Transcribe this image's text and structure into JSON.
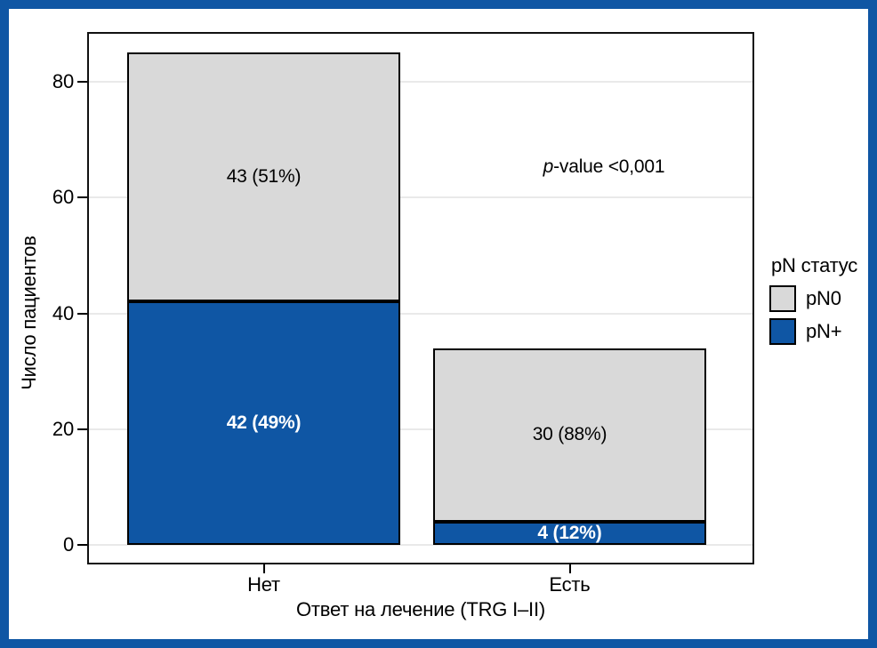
{
  "colors": {
    "pn0": "#d9d9d9",
    "pn_plus": "#0f56a4",
    "frame": "#0f56a4",
    "grid": "#e9e9e9"
  },
  "chart_data": {
    "type": "bar",
    "stacked": true,
    "categories": [
      "Нет",
      "Есть"
    ],
    "series": [
      {
        "name": "pN+",
        "color_key": "pn_plus",
        "values": [
          42,
          4
        ],
        "labels": [
          "42 (49%)",
          "4 (12%)"
        ],
        "label_color": "#ffffff",
        "label_bold": true
      },
      {
        "name": "pN0",
        "color_key": "pn0",
        "values": [
          43,
          30
        ],
        "labels": [
          "43 (51%)",
          "30 (88%)"
        ],
        "label_color": "#000000",
        "label_bold": false
      }
    ],
    "xlabel": "Ответ на лечение (TRG I–II)",
    "ylabel": "Число пациентов",
    "ylim": [
      0,
      88
    ],
    "yticks": [
      0,
      20,
      40,
      60,
      80
    ],
    "grid": "horizontal",
    "legend": {
      "title": "pN статус",
      "position": "right",
      "entries": [
        {
          "label": "pN0",
          "color_key": "pn0"
        },
        {
          "label": "pN+",
          "color_key": "pn_plus"
        }
      ]
    },
    "annotation": {
      "italic": "p",
      "text": "-value <0,001"
    }
  }
}
